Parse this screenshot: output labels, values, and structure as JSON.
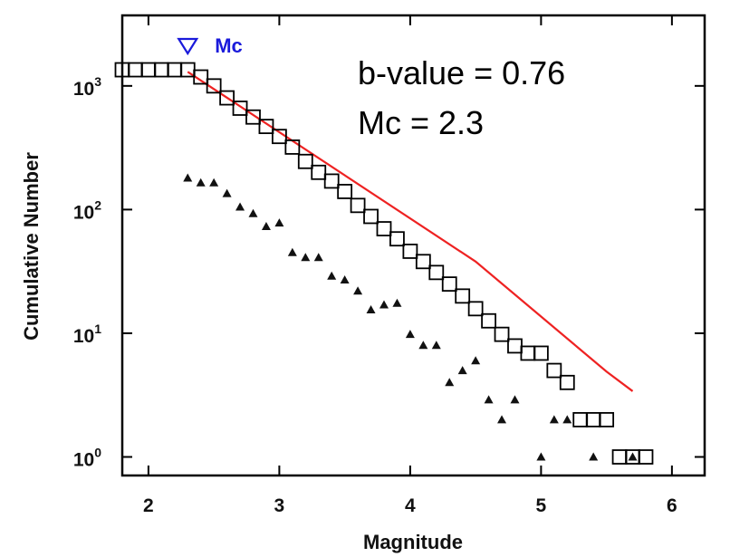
{
  "chart_data": {
    "type": "scatter",
    "title": "",
    "xlabel": "Magnitude",
    "ylabel": "Cumulative Number",
    "xlim": [
      1.8,
      6.25
    ],
    "ylim_log10": [
      -0.15,
      3.57
    ],
    "y_scale": "log",
    "grid": false,
    "x_ticks": [
      {
        "value": 2,
        "label": "2"
      },
      {
        "value": 3,
        "label": "3"
      },
      {
        "value": 4,
        "label": "4"
      },
      {
        "value": 5,
        "label": "5"
      },
      {
        "value": 6,
        "label": "6"
      }
    ],
    "y_ticks": [
      {
        "value": 1,
        "base": "10",
        "exp": "0"
      },
      {
        "value": 10,
        "base": "10",
        "exp": "1"
      },
      {
        "value": 100,
        "base": "10",
        "exp": "2"
      },
      {
        "value": 1000,
        "base": "10",
        "exp": "3"
      }
    ],
    "series": [
      {
        "marker": "open-square",
        "color": "#000000",
        "points": [
          [
            1.8,
            1350
          ],
          [
            1.9,
            1350
          ],
          [
            2.0,
            1350
          ],
          [
            2.1,
            1350
          ],
          [
            2.2,
            1350
          ],
          [
            2.3,
            1350
          ],
          [
            2.4,
            1180
          ],
          [
            2.5,
            1000
          ],
          [
            2.6,
            800
          ],
          [
            2.7,
            660
          ],
          [
            2.8,
            560
          ],
          [
            2.9,
            470
          ],
          [
            3.0,
            390
          ],
          [
            3.1,
            320
          ],
          [
            3.2,
            245
          ],
          [
            3.3,
            200
          ],
          [
            3.4,
            170
          ],
          [
            3.5,
            140
          ],
          [
            3.6,
            108
          ],
          [
            3.7,
            88
          ],
          [
            3.8,
            70
          ],
          [
            3.9,
            58
          ],
          [
            4.0,
            46
          ],
          [
            4.1,
            38
          ],
          [
            4.2,
            31
          ],
          [
            4.3,
            25
          ],
          [
            4.4,
            20
          ],
          [
            4.5,
            15.8
          ],
          [
            4.6,
            12.6
          ],
          [
            4.7,
            9.8
          ],
          [
            4.8,
            7.9
          ],
          [
            4.9,
            6.9
          ],
          [
            5.0,
            6.9
          ],
          [
            5.1,
            5.0
          ],
          [
            5.2,
            4.0
          ],
          [
            5.3,
            2.0
          ],
          [
            5.4,
            2.0
          ],
          [
            5.5,
            2.0
          ],
          [
            5.6,
            1.0
          ],
          [
            5.7,
            1.0
          ],
          [
            5.8,
            1.0
          ]
        ]
      },
      {
        "marker": "filled-triangle",
        "color": "#000000",
        "points": [
          [
            2.3,
            180
          ],
          [
            2.4,
            165
          ],
          [
            2.5,
            165
          ],
          [
            2.6,
            135
          ],
          [
            2.7,
            105
          ],
          [
            2.8,
            93
          ],
          [
            2.9,
            73
          ],
          [
            3.0,
            78
          ],
          [
            3.1,
            45
          ],
          [
            3.2,
            41
          ],
          [
            3.3,
            41
          ],
          [
            3.4,
            29
          ],
          [
            3.5,
            27
          ],
          [
            3.6,
            22
          ],
          [
            3.7,
            15.5
          ],
          [
            3.8,
            17
          ],
          [
            3.9,
            17.5
          ],
          [
            4.0,
            9.8
          ],
          [
            4.1,
            8
          ],
          [
            4.2,
            8
          ],
          [
            4.3,
            4
          ],
          [
            4.4,
            5
          ],
          [
            4.5,
            6
          ],
          [
            4.6,
            2.9
          ],
          [
            4.7,
            2
          ],
          [
            4.8,
            2.9
          ],
          [
            5.0,
            1
          ],
          [
            5.1,
            2
          ],
          [
            5.2,
            2
          ],
          [
            5.4,
            1
          ],
          [
            5.7,
            1
          ]
        ]
      },
      {
        "type": "line",
        "color": "#ee2222",
        "points": [
          [
            2.3,
            1300
          ],
          [
            4.5,
            38
          ],
          [
            5.5,
            4.9
          ],
          [
            5.7,
            3.4
          ]
        ]
      }
    ],
    "annotations": [
      {
        "text": "b-value = 0.76"
      },
      {
        "text": "Mc = 2.3"
      },
      {
        "text": "Mc",
        "marker": "open-triangle-down",
        "color": "#1a1adb",
        "x": 2.3
      }
    ]
  }
}
